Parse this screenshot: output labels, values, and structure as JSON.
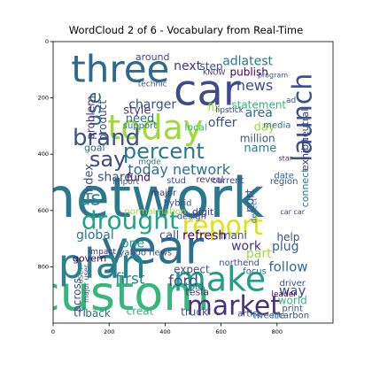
{
  "chart_data": {
    "type": "wordcloud",
    "title": "WordCloud 2 of 6 - Vocabulary from Real-Time",
    "xlim": [
      0,
      1000
    ],
    "ylim": [
      1000,
      0
    ],
    "xticks": [
      0,
      200,
      400,
      600,
      800
    ],
    "yticks": [
      0,
      200,
      400,
      600,
      800
    ],
    "grid": false,
    "words": [
      {
        "text": "network",
        "x": 355,
        "y": 555,
        "size": 62,
        "color": "#2a788e",
        "rot": 0
      },
      {
        "text": "custom",
        "x": 245,
        "y": 895,
        "size": 54,
        "color": "#35b779",
        "rot": 0
      },
      {
        "text": "year",
        "x": 355,
        "y": 735,
        "size": 52,
        "color": "#2d708e",
        "rot": 0
      },
      {
        "text": "car",
        "x": 550,
        "y": 175,
        "size": 48,
        "color": "#3e4a89",
        "rot": 0
      },
      {
        "text": "plan",
        "x": 175,
        "y": 790,
        "size": 46,
        "color": "#26828e",
        "rot": 0
      },
      {
        "text": "three",
        "x": 240,
        "y": 98,
        "size": 42,
        "color": "#31688e",
        "rot": 0
      },
      {
        "text": "today",
        "x": 365,
        "y": 305,
        "size": 38,
        "color": "#9fda3a",
        "rot": 0
      },
      {
        "text": "make",
        "x": 595,
        "y": 845,
        "size": 38,
        "color": "#1f9e89",
        "rot": 0
      },
      {
        "text": "market",
        "x": 645,
        "y": 940,
        "size": 30,
        "color": "#46337e",
        "rot": 0
      },
      {
        "text": "drought",
        "x": 275,
        "y": 635,
        "size": 28,
        "color": "#20a486",
        "rot": 0
      },
      {
        "text": "report",
        "x": 605,
        "y": 655,
        "size": 30,
        "color": "#dde318",
        "rot": 0
      },
      {
        "text": "launch",
        "x": 893,
        "y": 270,
        "size": 30,
        "color": "#3b528b",
        "rot": -90
      },
      {
        "text": "brand",
        "x": 190,
        "y": 343,
        "size": 26,
        "color": "#3b528b",
        "rot": 0
      },
      {
        "text": "percent",
        "x": 395,
        "y": 390,
        "size": 24,
        "color": "#2a788e",
        "rot": 0
      },
      {
        "text": "say",
        "x": 195,
        "y": 418,
        "size": 24,
        "color": "#3e4a89",
        "rot": 0
      },
      {
        "text": "use",
        "x": 148,
        "y": 240,
        "size": 22,
        "color": "#31688e",
        "rot": -90
      },
      {
        "text": "today network",
        "x": 450,
        "y": 455,
        "size": 16,
        "color": "#2d708e",
        "rot": 0
      },
      {
        "text": "next",
        "x": 480,
        "y": 88,
        "size": 14,
        "color": "#46337e",
        "rot": 0
      },
      {
        "text": "step",
        "x": 565,
        "y": 88,
        "size": 12,
        "color": "#3b528b",
        "rot": 0
      },
      {
        "text": "adlatest",
        "x": 695,
        "y": 70,
        "size": 14,
        "color": "#2a788e",
        "rot": 0
      },
      {
        "text": "publish",
        "x": 700,
        "y": 108,
        "size": 12,
        "color": "#440154",
        "rot": 0
      },
      {
        "text": "news",
        "x": 720,
        "y": 155,
        "size": 16,
        "color": "#3e4a89",
        "rot": 0
      },
      {
        "text": "statement",
        "x": 735,
        "y": 225,
        "size": 12,
        "color": "#35b779",
        "rot": 0
      },
      {
        "text": "area",
        "x": 735,
        "y": 255,
        "size": 14,
        "color": "#31688e",
        "rot": 0
      },
      {
        "text": "day",
        "x": 755,
        "y": 305,
        "size": 13,
        "color": "#9fda3a",
        "rot": 0
      },
      {
        "text": "million",
        "x": 730,
        "y": 345,
        "size": 12,
        "color": "#3b528b",
        "rot": 0
      },
      {
        "text": "name",
        "x": 740,
        "y": 380,
        "size": 13,
        "color": "#26828e",
        "rot": 0
      },
      {
        "text": "charger",
        "x": 355,
        "y": 225,
        "size": 14,
        "color": "#3b528b",
        "rot": 0
      },
      {
        "text": "style",
        "x": 300,
        "y": 245,
        "size": 13,
        "color": "#46337e",
        "rot": 0
      },
      {
        "text": "need",
        "x": 310,
        "y": 275,
        "size": 13,
        "color": "#2d708e",
        "rot": 0
      },
      {
        "text": "offer",
        "x": 605,
        "y": 290,
        "size": 14,
        "color": "#3b528b",
        "rot": 0
      },
      {
        "text": "local",
        "x": 510,
        "y": 305,
        "size": 11,
        "color": "#35b779",
        "rot": 0
      },
      {
        "text": "fix",
        "x": 575,
        "y": 235,
        "size": 12,
        "color": "#9fda3a",
        "rot": 0
      },
      {
        "text": "around",
        "x": 355,
        "y": 55,
        "size": 11,
        "color": "#3e4a89",
        "rot": 0
      },
      {
        "text": "share",
        "x": 220,
        "y": 482,
        "size": 14,
        "color": "#3b528b",
        "rot": 0
      },
      {
        "text": "fund",
        "x": 305,
        "y": 482,
        "size": 12,
        "color": "#440154",
        "rot": 0
      },
      {
        "text": "us",
        "x": 130,
        "y": 560,
        "size": 22,
        "color": "#26828e",
        "rot": 0
      },
      {
        "text": "index",
        "x": 130,
        "y": 490,
        "size": 13,
        "color": "#3b528b",
        "rot": -90
      },
      {
        "text": "problem",
        "x": 135,
        "y": 270,
        "size": 12,
        "color": "#46337e",
        "rot": -90
      },
      {
        "text": "product",
        "x": 178,
        "y": 280,
        "size": 12,
        "color": "#3b528b",
        "rot": -90
      },
      {
        "text": "goal",
        "x": 148,
        "y": 378,
        "size": 11,
        "color": "#31688e",
        "rot": 0
      },
      {
        "text": "global",
        "x": 150,
        "y": 688,
        "size": 14,
        "color": "#2a788e",
        "rot": 0
      },
      {
        "text": "one",
        "x": 285,
        "y": 718,
        "size": 14,
        "color": "#20a486",
        "rot": 0
      },
      {
        "text": "call",
        "x": 415,
        "y": 690,
        "size": 13,
        "color": "#3e4a89",
        "rot": 0
      },
      {
        "text": "refresh",
        "x": 540,
        "y": 690,
        "size": 14,
        "color": "#440154",
        "rot": 0
      },
      {
        "text": "mani",
        "x": 645,
        "y": 688,
        "size": 12,
        "color": "#3b528b",
        "rot": 0
      },
      {
        "text": "work",
        "x": 690,
        "y": 728,
        "size": 14,
        "color": "#46337e",
        "rot": 0
      },
      {
        "text": "part",
        "x": 735,
        "y": 755,
        "size": 14,
        "color": "#9fda3a",
        "rot": 0
      },
      {
        "text": "plug",
        "x": 830,
        "y": 730,
        "size": 14,
        "color": "#31688e",
        "rot": 0
      },
      {
        "text": "help",
        "x": 840,
        "y": 695,
        "size": 12,
        "color": "#3b528b",
        "rot": 0
      },
      {
        "text": "follow",
        "x": 840,
        "y": 800,
        "size": 15,
        "color": "#2d708e",
        "rot": 0
      },
      {
        "text": "port",
        "x": 705,
        "y": 565,
        "size": 13,
        "color": "#3b528b",
        "rot": -90
      },
      {
        "text": "connect",
        "x": 900,
        "y": 520,
        "size": 11,
        "color": "#2a788e",
        "rot": -90
      },
      {
        "text": "exhibit",
        "x": 900,
        "y": 400,
        "size": 11,
        "color": "#46337e",
        "rot": -90
      },
      {
        "text": "neutral",
        "x": 900,
        "y": 300,
        "size": 11,
        "color": "#3e4a89",
        "rot": -90
      },
      {
        "text": "first",
        "x": 275,
        "y": 845,
        "size": 17,
        "color": "#26828e",
        "rot": 0
      },
      {
        "text": "ford",
        "x": 465,
        "y": 852,
        "size": 17,
        "color": "#3e4a89",
        "rot": 0
      },
      {
        "text": "tesla",
        "x": 515,
        "y": 890,
        "size": 11,
        "color": "#46337e",
        "rot": 0
      },
      {
        "text": "told",
        "x": 505,
        "y": 870,
        "size": 11,
        "color": "#2d708e",
        "rot": 0
      },
      {
        "text": "expect",
        "x": 495,
        "y": 810,
        "size": 12,
        "color": "#3b528b",
        "rot": 0
      },
      {
        "text": "northend",
        "x": 665,
        "y": 788,
        "size": 10,
        "color": "#3e4a89",
        "rot": 0
      },
      {
        "text": "focus",
        "x": 720,
        "y": 818,
        "size": 10,
        "color": "#31688e",
        "rot": 0
      },
      {
        "text": "way",
        "x": 855,
        "y": 885,
        "size": 15,
        "color": "#3e4a89",
        "rot": 0
      },
      {
        "text": "world",
        "x": 855,
        "y": 920,
        "size": 12,
        "color": "#35b779",
        "rot": 0
      },
      {
        "text": "driver",
        "x": 855,
        "y": 860,
        "size": 10,
        "color": "#3b528b",
        "rot": 0
      },
      {
        "text": "across",
        "x": 85,
        "y": 900,
        "size": 12,
        "color": "#3b528b",
        "rot": -90
      },
      {
        "text": "govern",
        "x": 130,
        "y": 770,
        "size": 11,
        "color": "#440154",
        "rot": 0
      },
      {
        "text": "tri",
        "x": 95,
        "y": 965,
        "size": 13,
        "color": "#3b528b",
        "rot": 0
      },
      {
        "text": "back",
        "x": 160,
        "y": 965,
        "size": 12,
        "color": "#2a788e",
        "rot": 0
      },
      {
        "text": "creat",
        "x": 310,
        "y": 958,
        "size": 12,
        "color": "#35b779",
        "rot": 0
      },
      {
        "text": "truck",
        "x": 505,
        "y": 960,
        "size": 12,
        "color": "#3b528b",
        "rot": 0
      },
      {
        "text": "artist",
        "x": 700,
        "y": 968,
        "size": 10,
        "color": "#3e4a89",
        "rot": 0
      },
      {
        "text": "tweet",
        "x": 758,
        "y": 975,
        "size": 10,
        "color": "#31688e",
        "rot": 0
      },
      {
        "text": "life",
        "x": 805,
        "y": 975,
        "size": 10,
        "color": "#2d708e",
        "rot": 0
      },
      {
        "text": "carbon",
        "x": 860,
        "y": 975,
        "size": 10,
        "color": "#3b528b",
        "rot": 0
      },
      {
        "text": "hybrid",
        "x": 445,
        "y": 575,
        "size": 10,
        "color": "#3b528b",
        "rot": 0
      },
      {
        "text": "digit",
        "x": 535,
        "y": 605,
        "size": 11,
        "color": "#46337e",
        "rot": 0
      },
      {
        "text": "design",
        "x": 495,
        "y": 622,
        "size": 10,
        "color": "#3e4a89",
        "rot": 0
      },
      {
        "text": "normal nation",
        "x": 365,
        "y": 605,
        "size": 10,
        "color": "#9fda3a",
        "rot": 0
      },
      {
        "text": "yahoo news",
        "x": 330,
        "y": 752,
        "size": 10,
        "color": "#3b528b",
        "rot": 0
      },
      {
        "text": "major",
        "x": 395,
        "y": 540,
        "size": 10,
        "color": "#46337e",
        "rot": 0
      },
      {
        "text": "region",
        "x": 825,
        "y": 498,
        "size": 10,
        "color": "#3b528b",
        "rot": 0
      },
      {
        "text": "date",
        "x": 825,
        "y": 478,
        "size": 10,
        "color": "#31688e",
        "rot": 0
      },
      {
        "text": "current",
        "x": 625,
        "y": 495,
        "size": 10,
        "color": "#3e4a89",
        "rot": 0
      },
      {
        "text": "reveal",
        "x": 560,
        "y": 492,
        "size": 10,
        "color": "#46337e",
        "rot": 0
      },
      {
        "text": "import",
        "x": 260,
        "y": 500,
        "size": 9,
        "color": "#3b528b",
        "rot": 0
      },
      {
        "text": "mode",
        "x": 345,
        "y": 430,
        "size": 9,
        "color": "#31688e",
        "rot": 0
      },
      {
        "text": "support",
        "x": 310,
        "y": 300,
        "size": 10,
        "color": "#2a788e",
        "rot": 0
      },
      {
        "text": "technic",
        "x": 355,
        "y": 153,
        "size": 9,
        "color": "#3b528b",
        "rot": 0
      },
      {
        "text": "lipstick",
        "x": 630,
        "y": 245,
        "size": 9,
        "color": "#3e4a89",
        "rot": 0
      },
      {
        "text": "media",
        "x": 800,
        "y": 298,
        "size": 10,
        "color": "#31688e",
        "rot": 0
      },
      {
        "text": "print",
        "x": 855,
        "y": 950,
        "size": 10,
        "color": "#3b528b",
        "rot": 0
      },
      {
        "text": "leader",
        "x": 825,
        "y": 900,
        "size": 9,
        "color": "#440154",
        "rot": 0
      },
      {
        "text": "stud",
        "x": 440,
        "y": 495,
        "size": 10,
        "color": "#3b528b",
        "rot": 0
      },
      {
        "text": "KNOW",
        "x": 575,
        "y": 110,
        "size": 8,
        "color": "#46337e",
        "rot": 0
      },
      {
        "text": "program",
        "x": 785,
        "y": 120,
        "size": 8,
        "color": "#3b528b",
        "rot": 0
      },
      {
        "text": "detect",
        "x": 720,
        "y": 600,
        "size": 9,
        "color": "#31688e",
        "rot": -90
      },
      {
        "text": "car car",
        "x": 855,
        "y": 605,
        "size": 8,
        "color": "#3e4a89",
        "rot": 0
      },
      {
        "text": "star",
        "x": 830,
        "y": 415,
        "size": 8,
        "color": "#46337e",
        "rot": 0
      },
      {
        "text": "ad",
        "x": 850,
        "y": 210,
        "size": 9,
        "color": "#3b528b",
        "rot": 0
      },
      {
        "text": "user",
        "x": 100,
        "y": 830,
        "size": 9,
        "color": "#2a788e",
        "rot": -90
      },
      {
        "text": "major user",
        "x": 118,
        "y": 860,
        "size": 8,
        "color": "#3b528b",
        "rot": -90
      },
      {
        "text": "impact",
        "x": 175,
        "y": 748,
        "size": 9,
        "color": "#46337e",
        "rot": 0
      }
    ]
  }
}
